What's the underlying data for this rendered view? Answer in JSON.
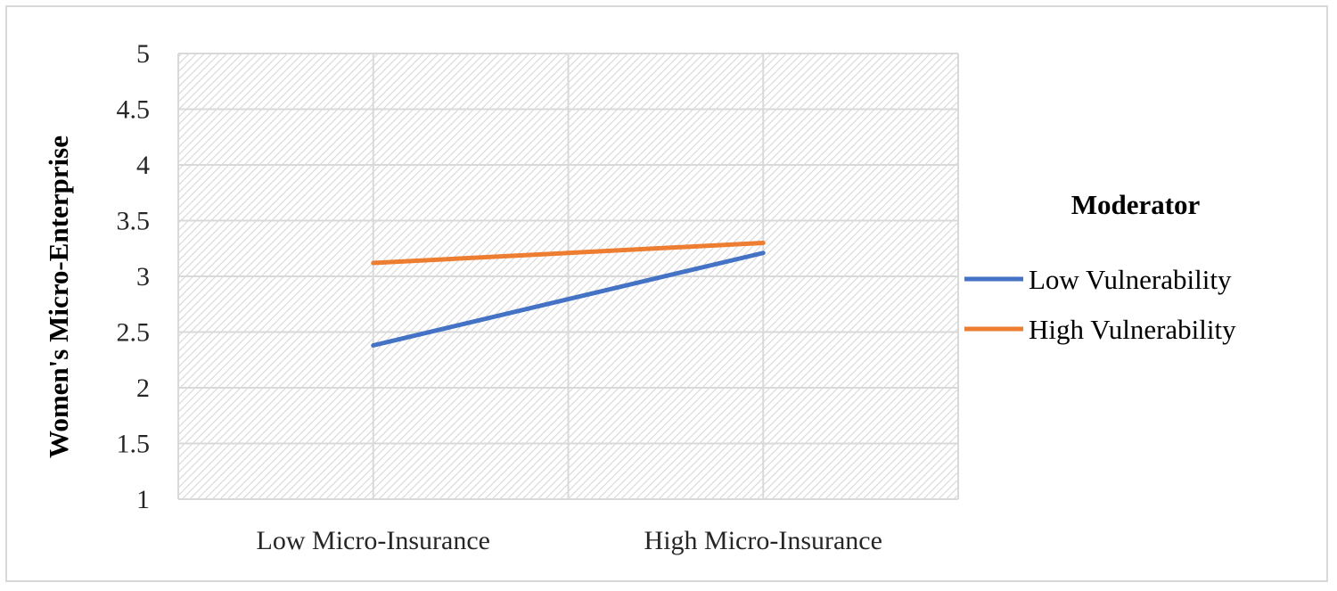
{
  "chart_data": {
    "type": "line",
    "categories": [
      "Low Micro-Insurance",
      "High Micro-Insurance"
    ],
    "series": [
      {
        "name": "Low Vulnerability",
        "values": [
          2.38,
          3.21
        ],
        "color": "#4472c4"
      },
      {
        "name": "High Vulnerability",
        "values": [
          3.12,
          3.3
        ],
        "color": "#ed7d31"
      }
    ],
    "ylabel": "Women's Micro-Enterprise",
    "ylim": [
      1,
      5
    ],
    "yticks": [
      "1",
      "1.5",
      "2",
      "2.5",
      "3",
      "3.5",
      "4",
      "4.5",
      "5"
    ],
    "legend_title": "Moderator",
    "legend_position": "right",
    "grid": true
  }
}
